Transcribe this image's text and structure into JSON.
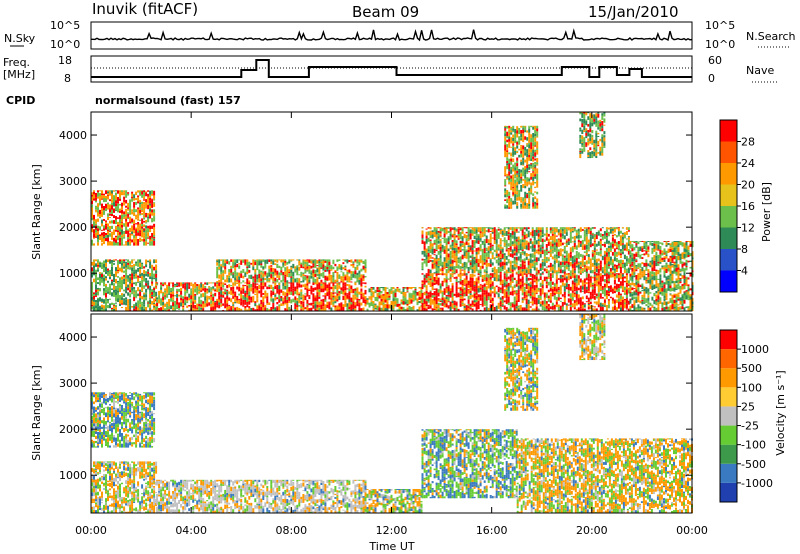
{
  "header": {
    "radar": "Inuvik (fitACF)",
    "beam": "Beam 09",
    "date": "15/Jan/2010"
  },
  "top_panel": {
    "left_label": "N.Sky",
    "left_ticks": [
      "10^5",
      "10^0"
    ],
    "right_ticks": [
      "10^5",
      "10^0"
    ],
    "right_label": "N.Search",
    "right_label_style": "dotted"
  },
  "freq_panel": {
    "left_label_1": "Freq.",
    "left_label_2": "[MHz]",
    "left_ticks": [
      "18",
      "8"
    ],
    "right_ticks": [
      "60",
      "0"
    ],
    "right_label": "Nave",
    "right_label_style": "dotted"
  },
  "cpid": {
    "label": "CPID",
    "text": "normalsound (fast) 157"
  },
  "chart_data": [
    {
      "type": "heatmap",
      "title": "",
      "ylabel": "Slant Range [km]",
      "xlabel": "",
      "x_ticks": [
        "00:00",
        "04:00",
        "08:00",
        "12:00",
        "16:00",
        "20:00",
        "00:00"
      ],
      "xlim_hours": [
        0,
        24
      ],
      "y_ticks": [
        1000,
        2000,
        3000,
        4000
      ],
      "ylim": [
        180,
        4500
      ],
      "colorbar": {
        "label": "Power [dB]",
        "ticks": [
          "4",
          "8",
          "12",
          "16",
          "20",
          "24",
          "28"
        ],
        "colors": [
          "#0000ff",
          "#2a52c8",
          "#2e8b57",
          "#6cbf4a",
          "#e6c21a",
          "#ff9900",
          "#ff5500",
          "#ff0000"
        ]
      },
      "echo_regions": [
        {
          "t0": 0.0,
          "t1": 2.6,
          "r0": 180,
          "r1": 1300,
          "mix": [
            0.35,
            0.35,
            0.2,
            0.1
          ]
        },
        {
          "t0": 0.0,
          "t1": 2.5,
          "r0": 1600,
          "r1": 2800,
          "mix": [
            0.05,
            0.25,
            0.4,
            0.3
          ]
        },
        {
          "t0": 2.6,
          "t1": 5.0,
          "r0": 180,
          "r1": 800,
          "mix": [
            0.1,
            0.3,
            0.35,
            0.25
          ]
        },
        {
          "t0": 5.0,
          "t1": 11.0,
          "r0": 180,
          "r1": 800,
          "mix": [
            0.05,
            0.1,
            0.3,
            0.55
          ]
        },
        {
          "t0": 5.0,
          "t1": 11.0,
          "r0": 800,
          "r1": 1300,
          "mix": [
            0.15,
            0.35,
            0.35,
            0.15
          ]
        },
        {
          "t0": 11.0,
          "t1": 13.2,
          "r0": 180,
          "r1": 700,
          "mix": [
            0.1,
            0.3,
            0.4,
            0.2
          ]
        },
        {
          "t0": 13.2,
          "t1": 21.5,
          "r0": 180,
          "r1": 1000,
          "mix": [
            0.05,
            0.15,
            0.3,
            0.5
          ]
        },
        {
          "t0": 13.2,
          "t1": 21.5,
          "r0": 1000,
          "r1": 2000,
          "mix": [
            0.2,
            0.3,
            0.3,
            0.2
          ]
        },
        {
          "t0": 21.5,
          "t1": 24.0,
          "r0": 180,
          "r1": 1700,
          "mix": [
            0.25,
            0.3,
            0.3,
            0.15
          ]
        },
        {
          "t0": 16.5,
          "t1": 17.8,
          "r0": 2400,
          "r1": 4200,
          "mix": [
            0.2,
            0.3,
            0.35,
            0.15
          ]
        },
        {
          "t0": 19.5,
          "t1": 20.5,
          "r0": 3500,
          "r1": 4500,
          "mix": [
            0.3,
            0.3,
            0.3,
            0.1
          ]
        }
      ]
    },
    {
      "type": "heatmap",
      "title": "",
      "ylabel": "Slant Range [km]",
      "xlabel": "Time UT",
      "x_ticks": [
        "00:00",
        "04:00",
        "08:00",
        "12:00",
        "16:00",
        "20:00",
        "00:00"
      ],
      "xlim_hours": [
        0,
        24
      ],
      "y_ticks": [
        1000,
        2000,
        3000,
        4000
      ],
      "ylim": [
        180,
        4500
      ],
      "colorbar": {
        "label": "Velocity [m s⁻¹]",
        "ticks": [
          "1000",
          "500",
          "100",
          "25",
          "-25",
          "-100",
          "-500",
          "-1000"
        ],
        "colors": [
          "#2040b0",
          "#3a7ac0",
          "#3c9a4a",
          "#66cc33",
          "#c0c0c0",
          "#ffcc33",
          "#ff9900",
          "#ff6600",
          "#ff0000"
        ]
      },
      "echo_regions": [
        {
          "t0": 0.0,
          "t1": 2.6,
          "r0": 180,
          "r1": 1300,
          "mix": [
            0.25,
            0.4,
            0.25,
            0.1
          ]
        },
        {
          "t0": 0.0,
          "t1": 2.5,
          "r0": 1600,
          "r1": 2800,
          "mix": [
            0.1,
            0.2,
            0.3,
            0.4
          ]
        },
        {
          "t0": 2.6,
          "t1": 11.0,
          "r0": 180,
          "r1": 900,
          "mix": [
            0.5,
            0.25,
            0.15,
            0.1
          ]
        },
        {
          "t0": 11.0,
          "t1": 13.2,
          "r0": 180,
          "r1": 700,
          "mix": [
            0.2,
            0.3,
            0.3,
            0.2
          ]
        },
        {
          "t0": 13.2,
          "t1": 17.0,
          "r0": 500,
          "r1": 2000,
          "mix": [
            0.05,
            0.15,
            0.4,
            0.4
          ]
        },
        {
          "t0": 17.0,
          "t1": 24.0,
          "r0": 180,
          "r1": 1800,
          "mix": [
            0.1,
            0.5,
            0.3,
            0.1
          ]
        },
        {
          "t0": 16.5,
          "t1": 17.8,
          "r0": 2400,
          "r1": 4200,
          "mix": [
            0.1,
            0.4,
            0.3,
            0.2
          ]
        },
        {
          "t0": 19.5,
          "t1": 20.5,
          "r0": 3500,
          "r1": 4500,
          "mix": [
            0.2,
            0.4,
            0.3,
            0.1
          ]
        }
      ]
    }
  ],
  "x_axis_title": "Time UT"
}
